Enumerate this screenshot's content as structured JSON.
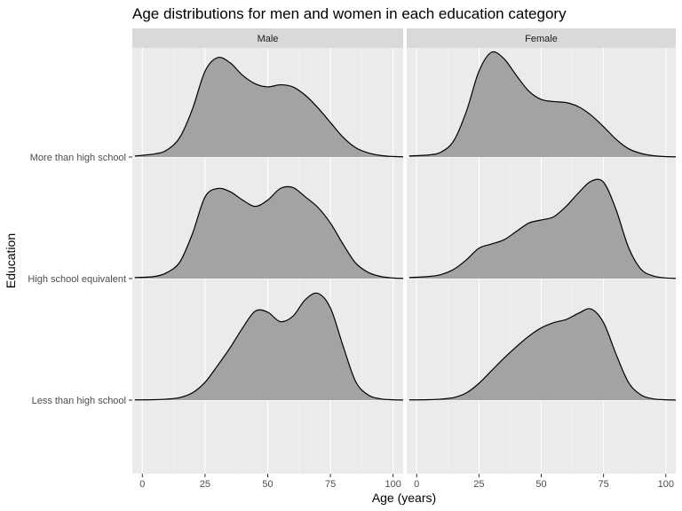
{
  "chart_data": {
    "type": "area",
    "subtype": "ridgeline-density",
    "title": "Age distributions for men and women in each education category",
    "xlabel": "Age (years)",
    "ylabel": "Education",
    "xlim": [
      -4,
      104
    ],
    "x_ticks": [
      0,
      25,
      50,
      75,
      100
    ],
    "x_tick_labels": [
      "0",
      "25",
      "50",
      "75",
      "100"
    ],
    "categories": [
      "More than high school",
      "High school equivalent",
      "Less than high school"
    ],
    "facets": [
      "Male",
      "Female"
    ],
    "fill_color": "#a3a3a3",
    "grid": true,
    "x": [
      -3,
      5,
      10,
      15,
      20,
      25,
      30,
      35,
      40,
      45,
      50,
      55,
      60,
      65,
      70,
      75,
      80,
      85,
      90,
      95,
      100,
      104
    ],
    "series": [
      {
        "facet": "Male",
        "category": "More than high school",
        "values": [
          0.01,
          0.03,
          0.07,
          0.19,
          0.46,
          0.82,
          0.95,
          0.9,
          0.78,
          0.7,
          0.67,
          0.69,
          0.67,
          0.59,
          0.47,
          0.33,
          0.19,
          0.09,
          0.04,
          0.015,
          0.005,
          0.002
        ]
      },
      {
        "facet": "Female",
        "category": "More than high school",
        "values": [
          0.01,
          0.02,
          0.05,
          0.16,
          0.44,
          0.82,
          1.0,
          0.94,
          0.78,
          0.63,
          0.55,
          0.53,
          0.52,
          0.48,
          0.4,
          0.29,
          0.17,
          0.08,
          0.035,
          0.013,
          0.004,
          0.002
        ]
      },
      {
        "facet": "Male",
        "category": "High school equivalent",
        "values": [
          0.01,
          0.02,
          0.06,
          0.16,
          0.43,
          0.78,
          0.86,
          0.83,
          0.75,
          0.69,
          0.75,
          0.86,
          0.87,
          0.78,
          0.68,
          0.53,
          0.33,
          0.15,
          0.06,
          0.02,
          0.005,
          0.002
        ]
      },
      {
        "facet": "Female",
        "category": "High school equivalent",
        "values": [
          0.01,
          0.02,
          0.04,
          0.09,
          0.18,
          0.29,
          0.33,
          0.37,
          0.45,
          0.53,
          0.56,
          0.59,
          0.69,
          0.82,
          0.93,
          0.92,
          0.66,
          0.3,
          0.09,
          0.025,
          0.006,
          0.002
        ]
      },
      {
        "facet": "Male",
        "category": "Less than high school",
        "values": [
          0.002,
          0.004,
          0.01,
          0.025,
          0.07,
          0.17,
          0.33,
          0.5,
          0.69,
          0.85,
          0.84,
          0.75,
          0.8,
          0.96,
          1.02,
          0.88,
          0.52,
          0.18,
          0.05,
          0.012,
          0.003,
          0.001
        ]
      },
      {
        "facet": "Female",
        "category": "Less than high school",
        "values": [
          0.002,
          0.004,
          0.01,
          0.025,
          0.07,
          0.16,
          0.28,
          0.4,
          0.51,
          0.61,
          0.69,
          0.74,
          0.77,
          0.83,
          0.87,
          0.74,
          0.44,
          0.17,
          0.05,
          0.012,
          0.003,
          0.001
        ]
      }
    ]
  }
}
